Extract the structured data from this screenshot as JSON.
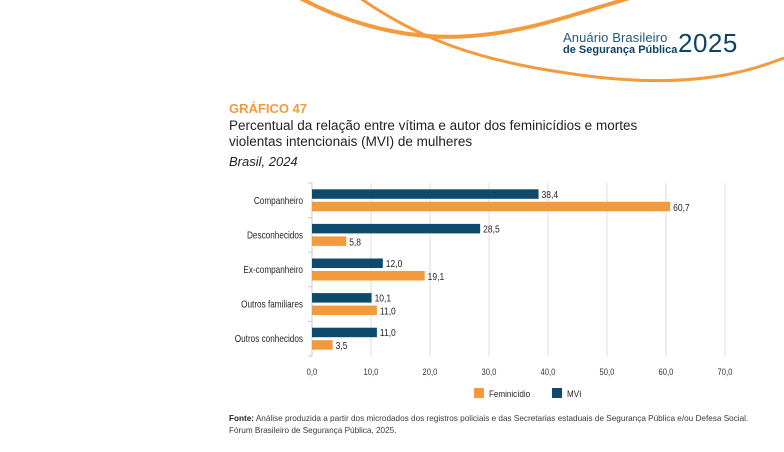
{
  "brand": {
    "line1": "Anuário Brasileiro",
    "line2": "de Segurança Pública",
    "year": "2025"
  },
  "header": {
    "chart_number": "GRÁFICO 47",
    "title": "Percentual da relação entre vítima e autor dos feminicídios e mortes violentas intencionais (MVI) de mulheres",
    "subtitle": "Brasil, 2024"
  },
  "colors": {
    "feminicidio": "#f39a3c",
    "mvi": "#0e4a6b",
    "accent": "#f39a3c"
  },
  "chart_data": {
    "type": "bar",
    "orientation": "horizontal",
    "title": "Percentual da relação entre vítima e autor dos feminicídios e mortes violentas intencionais (MVI) de mulheres",
    "subtitle": "Brasil, 2024",
    "categories": [
      "Companheiro",
      "Desconhecidos",
      "Ex-companheiro",
      "Outros familiares",
      "Outros conhecidos"
    ],
    "series": [
      {
        "name": "MVI",
        "values": [
          38.4,
          28.5,
          12.0,
          10.1,
          11.0
        ],
        "labels": [
          "38,4",
          "28,5",
          "12,0",
          "10,1",
          "11,0"
        ]
      },
      {
        "name": "Feminicídio",
        "values": [
          60.7,
          5.8,
          19.1,
          11.0,
          3.5
        ],
        "labels": [
          "60,7",
          "5,8",
          "19,1",
          "11,0",
          "3,5"
        ]
      }
    ],
    "xlim": [
      0,
      70
    ],
    "xticks": [
      0,
      10,
      20,
      30,
      40,
      50,
      60,
      70
    ],
    "xtick_labels": [
      "0,0",
      "10,0",
      "20,0",
      "30,0",
      "40,0",
      "50,0",
      "60,0",
      "70,0"
    ],
    "grid": true,
    "legend": [
      "Feminicídio",
      "MVI"
    ],
    "legend_position": "bottom"
  },
  "source": {
    "label": "Fonte:",
    "text": "Análise produzida a partir dos microdados dos registros policiais e das Secretarias estaduais de Segurança Pública e/ou Defesa Social.",
    "line2": "Fórum Brasileiro de Segurança Pública, 2025."
  }
}
